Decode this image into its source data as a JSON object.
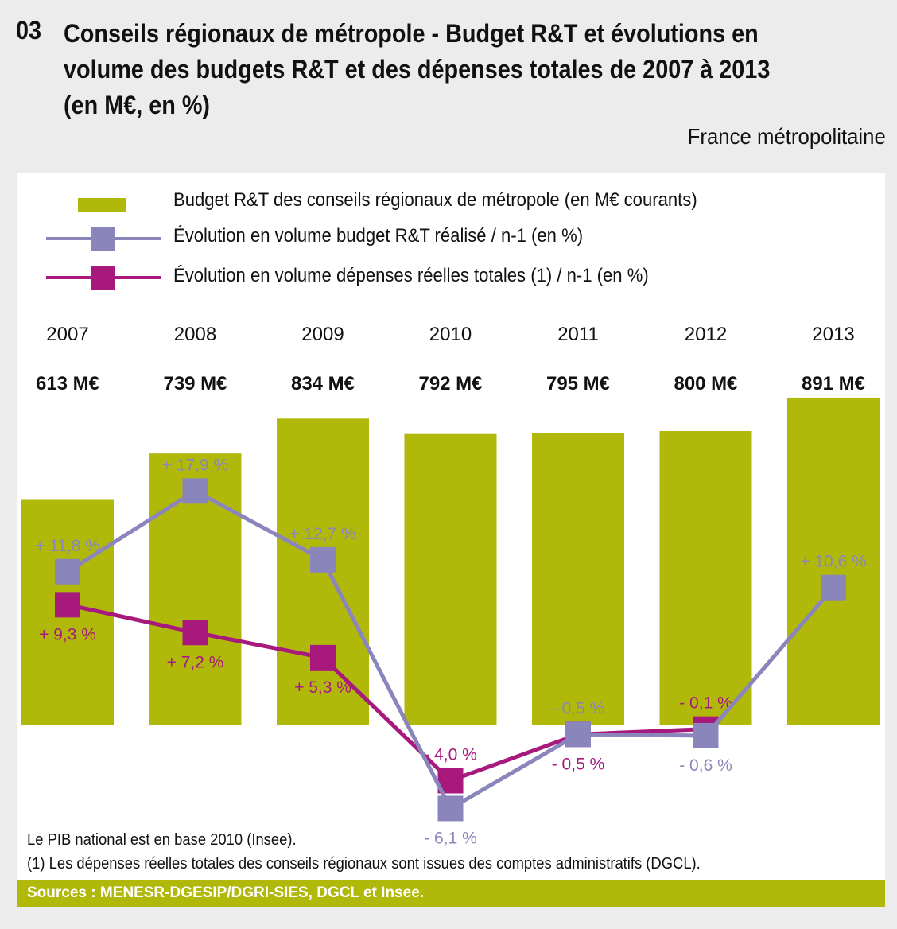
{
  "header": {
    "number": "03",
    "title": "Conseils régionaux de métropole - Budget R&T et évolutions en volume des budgets R&T et des dépenses totales de 2007 à 2013 (en M€, en %)",
    "scope": "France métropolitaine"
  },
  "notes": [
    "Le PIB national est en base 2010 (Insee).",
    "(1) Les dépenses réelles totales des conseils régionaux sont issues des comptes administratifs (DGCL)."
  ],
  "source": "Sources : MENESR-DGESIP/DGRI-SIES, DGCL et Insee.",
  "colors": {
    "bar": "#b0b80a",
    "rt": "#8a86bc",
    "dep": "#a8197e"
  },
  "chart_data": {
    "type": "bar+line",
    "categories": [
      "2007",
      "2008",
      "2009",
      "2010",
      "2011",
      "2012",
      "2013"
    ],
    "bar_labels": [
      "613 M€",
      "739 M€",
      "834 M€",
      "792 M€",
      "795 M€",
      "800 M€",
      "891 M€"
    ],
    "series": [
      {
        "name": "Budget R&T des conseils régionaux de métropole (en M€ courants)",
        "type": "bar",
        "values": [
          613,
          739,
          834,
          792,
          795,
          800,
          891
        ]
      },
      {
        "name": "Évolution en volume budget R&T réalisé / n-1 (en %)",
        "type": "line",
        "values": [
          11.8,
          17.9,
          12.7,
          -6.1,
          -0.5,
          -0.6,
          10.6
        ],
        "labels": [
          "+ 11,8 %",
          "+ 17,9 %",
          "+ 12,7 %",
          "- 6,1 %",
          "- 0,5 %",
          "- 0,6 %",
          "+ 10,6 %"
        ],
        "label_side": [
          "above",
          "above",
          "above",
          "below",
          "above",
          "below",
          "above"
        ]
      },
      {
        "name": "Évolution en volume dépenses réelles totales (1) / n-1 (en %)",
        "type": "line",
        "values": [
          9.3,
          7.2,
          5.3,
          -4.0,
          -0.5,
          -0.1,
          null
        ],
        "labels": [
          "+ 9,3 %",
          "+ 7,2 %",
          "+ 5,3 %",
          "- 4,0 %",
          "- 0,5 %",
          "- 0,1 %",
          null
        ],
        "label_side": [
          "below",
          "below",
          "below",
          "above",
          "below",
          "above",
          null
        ]
      }
    ]
  }
}
